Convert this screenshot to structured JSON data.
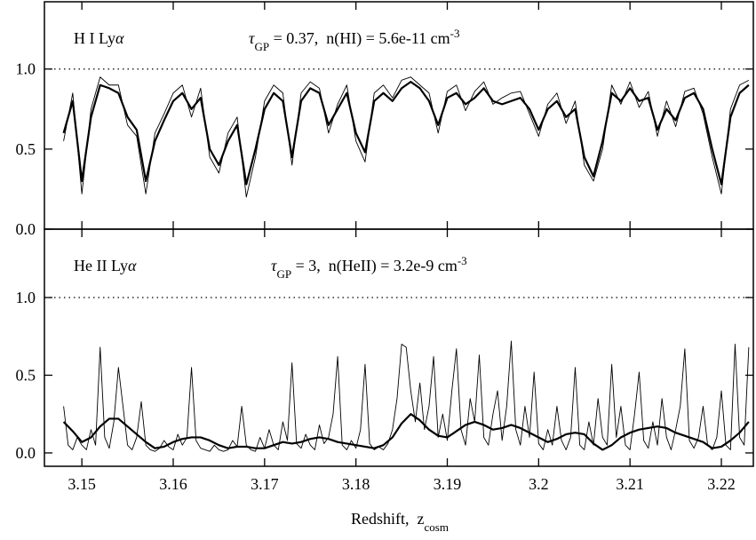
{
  "chart_data": [
    {
      "type": "line",
      "label": {
        "text": "H I Ly",
        "greek": "α"
      },
      "annotation": {
        "symbol": "τ",
        "subscript": "GP",
        "text": " = 0.37,  n(HI) = 5.6e-11 cm",
        "superscript": "-3"
      },
      "xlim": [
        3.1459,
        3.2235
      ],
      "ylim": [
        0,
        1.42
      ],
      "yticks": [
        {
          "value": 0,
          "label": "0.0"
        },
        {
          "value": 0.5,
          "label": "0.5"
        },
        {
          "value": 1,
          "label": "1.0"
        }
      ],
      "reference_line": 1,
      "series": [
        {
          "color": "#000000",
          "line_width": 0.9,
          "x": [
            3.148,
            3.149,
            3.15,
            3.151,
            3.152,
            3.153,
            3.154,
            3.155,
            3.156,
            3.157,
            3.158,
            3.159,
            3.16,
            3.161,
            3.162,
            3.163,
            3.164,
            3.165,
            3.166,
            3.167,
            3.168,
            3.169,
            3.17,
            3.171,
            3.172,
            3.173,
            3.174,
            3.175,
            3.176,
            3.177,
            3.178,
            3.179,
            3.18,
            3.181,
            3.182,
            3.183,
            3.184,
            3.185,
            3.186,
            3.187,
            3.188,
            3.189,
            3.19,
            3.191,
            3.192,
            3.193,
            3.194,
            3.195,
            3.196,
            3.197,
            3.198,
            3.199,
            3.2,
            3.201,
            3.202,
            3.203,
            3.204,
            3.205,
            3.206,
            3.207,
            3.208,
            3.209,
            3.21,
            3.211,
            3.212,
            3.213,
            3.214,
            3.215,
            3.216,
            3.217,
            3.218,
            3.219,
            3.22,
            3.221,
            3.222,
            3.223
          ],
          "values": [
            0.55,
            0.85,
            0.22,
            0.75,
            0.95,
            0.9,
            0.9,
            0.65,
            0.58,
            0.22,
            0.6,
            0.72,
            0.85,
            0.9,
            0.7,
            0.88,
            0.45,
            0.35,
            0.6,
            0.7,
            0.2,
            0.45,
            0.8,
            0.9,
            0.85,
            0.4,
            0.85,
            0.92,
            0.88,
            0.6,
            0.78,
            0.9,
            0.55,
            0.42,
            0.85,
            0.9,
            0.82,
            0.93,
            0.95,
            0.9,
            0.85,
            0.6,
            0.86,
            0.9,
            0.74,
            0.86,
            0.92,
            0.78,
            0.82,
            0.85,
            0.86,
            0.72,
            0.58,
            0.78,
            0.85,
            0.66,
            0.8,
            0.4,
            0.3,
            0.5,
            0.9,
            0.78,
            0.92,
            0.76,
            0.86,
            0.58,
            0.8,
            0.64,
            0.86,
            0.88,
            0.72,
            0.45,
            0.22,
            0.75,
            0.9,
            0.93
          ]
        },
        {
          "color": "#000000",
          "line_width": 2.2,
          "x": [
            3.148,
            3.149,
            3.15,
            3.151,
            3.152,
            3.153,
            3.154,
            3.155,
            3.156,
            3.157,
            3.158,
            3.159,
            3.16,
            3.161,
            3.162,
            3.163,
            3.164,
            3.165,
            3.166,
            3.167,
            3.168,
            3.169,
            3.17,
            3.171,
            3.172,
            3.173,
            3.174,
            3.175,
            3.176,
            3.177,
            3.178,
            3.179,
            3.18,
            3.181,
            3.182,
            3.183,
            3.184,
            3.185,
            3.186,
            3.187,
            3.188,
            3.189,
            3.19,
            3.191,
            3.192,
            3.193,
            3.194,
            3.195,
            3.196,
            3.197,
            3.198,
            3.199,
            3.2,
            3.201,
            3.202,
            3.203,
            3.204,
            3.205,
            3.206,
            3.207,
            3.208,
            3.209,
            3.21,
            3.211,
            3.212,
            3.213,
            3.214,
            3.215,
            3.216,
            3.217,
            3.218,
            3.219,
            3.22,
            3.221,
            3.222,
            3.223
          ],
          "values": [
            0.6,
            0.8,
            0.3,
            0.7,
            0.9,
            0.88,
            0.85,
            0.7,
            0.62,
            0.3,
            0.55,
            0.68,
            0.8,
            0.85,
            0.75,
            0.82,
            0.5,
            0.4,
            0.55,
            0.65,
            0.28,
            0.5,
            0.75,
            0.85,
            0.8,
            0.45,
            0.8,
            0.88,
            0.85,
            0.65,
            0.75,
            0.85,
            0.6,
            0.48,
            0.8,
            0.85,
            0.8,
            0.88,
            0.92,
            0.88,
            0.8,
            0.65,
            0.82,
            0.85,
            0.78,
            0.82,
            0.88,
            0.8,
            0.78,
            0.8,
            0.82,
            0.75,
            0.62,
            0.75,
            0.8,
            0.7,
            0.75,
            0.45,
            0.33,
            0.55,
            0.85,
            0.8,
            0.88,
            0.8,
            0.82,
            0.62,
            0.75,
            0.68,
            0.82,
            0.85,
            0.75,
            0.5,
            0.28,
            0.7,
            0.85,
            0.9
          ]
        }
      ]
    },
    {
      "type": "line",
      "label": {
        "text": "He II Ly",
        "greek": "α"
      },
      "annotation": {
        "symbol": "τ",
        "subscript": "GP",
        "text": " = 3,  n(HeII) = 3.2e-9 cm",
        "superscript": "-3"
      },
      "xlabel": {
        "text": "Redshift,  z",
        "subscript": "cosm"
      },
      "xlim": [
        3.1459,
        3.2235
      ],
      "ylim": [
        -0.086,
        1.44
      ],
      "xticks": [
        3.15,
        3.16,
        3.17,
        3.18,
        3.19,
        3.2,
        3.21,
        3.22
      ],
      "yticks": [
        {
          "value": 0,
          "label": "0.0"
        },
        {
          "value": 0.5,
          "label": "0.5"
        },
        {
          "value": 1,
          "label": "1.0"
        }
      ],
      "reference_line": 1,
      "series": [
        {
          "color": "#000000",
          "line_width": 0.9,
          "x": [
            3.148,
            3.1485,
            3.149,
            3.1495,
            3.15,
            3.1505,
            3.151,
            3.1515,
            3.152,
            3.1525,
            3.153,
            3.1535,
            3.154,
            3.1545,
            3.155,
            3.1555,
            3.156,
            3.1565,
            3.157,
            3.1575,
            3.158,
            3.1585,
            3.159,
            3.1595,
            3.16,
            3.1605,
            3.161,
            3.1615,
            3.162,
            3.1625,
            3.163,
            3.1635,
            3.164,
            3.1645,
            3.165,
            3.1655,
            3.166,
            3.1665,
            3.167,
            3.1675,
            3.168,
            3.1685,
            3.169,
            3.1695,
            3.17,
            3.1705,
            3.171,
            3.1715,
            3.172,
            3.1725,
            3.173,
            3.1735,
            3.174,
            3.1745,
            3.175,
            3.1755,
            3.176,
            3.1765,
            3.177,
            3.1775,
            3.178,
            3.1785,
            3.179,
            3.1795,
            3.18,
            3.1805,
            3.181,
            3.1815,
            3.182,
            3.1825,
            3.183,
            3.1835,
            3.184,
            3.1845,
            3.185,
            3.1855,
            3.186,
            3.1865,
            3.187,
            3.1875,
            3.188,
            3.1885,
            3.189,
            3.1895,
            3.19,
            3.1905,
            3.191,
            3.1915,
            3.192,
            3.1925,
            3.193,
            3.1935,
            3.194,
            3.1945,
            3.195,
            3.1955,
            3.196,
            3.1965,
            3.197,
            3.1975,
            3.198,
            3.1985,
            3.199,
            3.1995,
            3.2,
            3.2005,
            3.201,
            3.2015,
            3.202,
            3.2025,
            3.203,
            3.2035,
            3.204,
            3.2045,
            3.205,
            3.2055,
            3.206,
            3.2065,
            3.207,
            3.2075,
            3.208,
            3.2085,
            3.209,
            3.2095,
            3.21,
            3.2105,
            3.211,
            3.2115,
            3.212,
            3.2125,
            3.213,
            3.2135,
            3.214,
            3.2145,
            3.215,
            3.2155,
            3.216,
            3.2165,
            3.217,
            3.2175,
            3.218,
            3.2185,
            3.219,
            3.2195,
            3.22,
            3.2205,
            3.221,
            3.2215,
            3.222,
            3.2225,
            3.223
          ],
          "values": [
            0.3,
            0.05,
            0.02,
            0.1,
            0.05,
            0.02,
            0.15,
            0.05,
            0.68,
            0.1,
            0.03,
            0.2,
            0.55,
            0.3,
            0.05,
            0.02,
            0.1,
            0.33,
            0.05,
            0.02,
            0.01,
            0.03,
            0.08,
            0.04,
            0.02,
            0.12,
            0.05,
            0.1,
            0.55,
            0.08,
            0.03,
            0.02,
            0.01,
            0.05,
            0.02,
            0.01,
            0.02,
            0.08,
            0.04,
            0.3,
            0.05,
            0.02,
            0.01,
            0.1,
            0.03,
            0.15,
            0.05,
            0.02,
            0.2,
            0.08,
            0.58,
            0.06,
            0.03,
            0.12,
            0.05,
            0.02,
            0.18,
            0.06,
            0.1,
            0.25,
            0.62,
            0.05,
            0.02,
            0.08,
            0.03,
            0.15,
            0.57,
            0.06,
            0.02,
            0.04,
            0.02,
            0.06,
            0.15,
            0.35,
            0.7,
            0.68,
            0.4,
            0.2,
            0.45,
            0.15,
            0.3,
            0.62,
            0.1,
            0.25,
            0.08,
            0.4,
            0.67,
            0.15,
            0.05,
            0.35,
            0.2,
            0.63,
            0.1,
            0.05,
            0.25,
            0.4,
            0.08,
            0.3,
            0.72,
            0.15,
            0.05,
            0.3,
            0.1,
            0.52,
            0.06,
            0.02,
            0.15,
            0.05,
            0.3,
            0.08,
            0.02,
            0.1,
            0.55,
            0.05,
            0.02,
            0.2,
            0.05,
            0.35,
            0.1,
            0.05,
            0.57,
            0.1,
            0.3,
            0.05,
            0.02,
            0.25,
            0.52,
            0.08,
            0.03,
            0.2,
            0.05,
            0.35,
            0.1,
            0.02,
            0.15,
            0.3,
            0.67,
            0.08,
            0.03,
            0.1,
            0.3,
            0.05,
            0.02,
            0.1,
            0.4,
            0.05,
            0.02,
            0.7,
            0.1,
            0.05,
            0.68
          ]
        },
        {
          "color": "#000000",
          "line_width": 2.2,
          "x": [
            3.148,
            3.149,
            3.15,
            3.151,
            3.152,
            3.153,
            3.154,
            3.155,
            3.156,
            3.157,
            3.158,
            3.159,
            3.16,
            3.161,
            3.162,
            3.163,
            3.164,
            3.165,
            3.166,
            3.167,
            3.168,
            3.169,
            3.17,
            3.171,
            3.172,
            3.173,
            3.174,
            3.175,
            3.176,
            3.177,
            3.178,
            3.179,
            3.18,
            3.181,
            3.182,
            3.183,
            3.184,
            3.185,
            3.186,
            3.187,
            3.188,
            3.189,
            3.19,
            3.191,
            3.192,
            3.193,
            3.194,
            3.195,
            3.196,
            3.197,
            3.198,
            3.199,
            3.2,
            3.201,
            3.202,
            3.203,
            3.204,
            3.205,
            3.206,
            3.207,
            3.208,
            3.209,
            3.21,
            3.211,
            3.212,
            3.213,
            3.214,
            3.215,
            3.216,
            3.217,
            3.218,
            3.219,
            3.22,
            3.221,
            3.222,
            3.223
          ],
          "values": [
            0.2,
            0.14,
            0.07,
            0.1,
            0.17,
            0.22,
            0.22,
            0.17,
            0.12,
            0.07,
            0.03,
            0.04,
            0.07,
            0.09,
            0.1,
            0.1,
            0.08,
            0.05,
            0.03,
            0.04,
            0.04,
            0.03,
            0.03,
            0.05,
            0.07,
            0.06,
            0.07,
            0.09,
            0.1,
            0.09,
            0.07,
            0.06,
            0.05,
            0.04,
            0.03,
            0.05,
            0.1,
            0.19,
            0.25,
            0.21,
            0.15,
            0.11,
            0.1,
            0.14,
            0.18,
            0.2,
            0.18,
            0.15,
            0.16,
            0.18,
            0.16,
            0.13,
            0.1,
            0.07,
            0.09,
            0.12,
            0.13,
            0.12,
            0.06,
            0.02,
            0.05,
            0.1,
            0.13,
            0.15,
            0.16,
            0.17,
            0.16,
            0.13,
            0.11,
            0.09,
            0.07,
            0.03,
            0.04,
            0.08,
            0.13,
            0.2
          ]
        }
      ]
    }
  ]
}
